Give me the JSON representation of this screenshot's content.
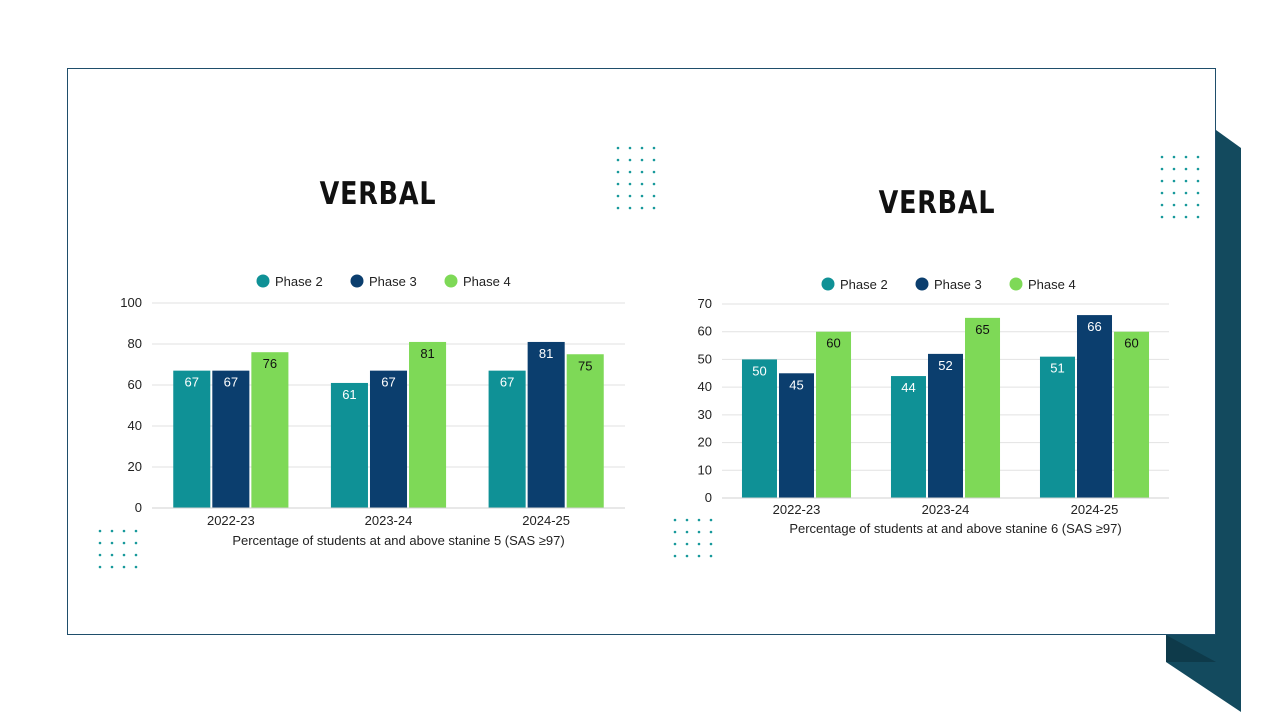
{
  "colors": {
    "phase2": "#0f9196",
    "phase3": "#0b3e6e",
    "phase4": "#7ed957",
    "frame": "#1f4e6b",
    "accent_dark": "#134a5e",
    "dots": "#17999b"
  },
  "chart_data": [
    {
      "type": "bar",
      "title": "VERBAL",
      "categories": [
        "2022-23",
        "2023-24",
        "2024-25"
      ],
      "series": [
        {
          "name": "Phase 2",
          "values": [
            67,
            61,
            67
          ]
        },
        {
          "name": "Phase 3",
          "values": [
            67,
            67,
            81
          ]
        },
        {
          "name": "Phase 4",
          "values": [
            76,
            81,
            75
          ]
        }
      ],
      "xlabel": "Percentage of students at and above stanine 5 (SAS ≥97)",
      "ylabel": "",
      "ylim": [
        0,
        100
      ],
      "yticks": [
        "0",
        "20",
        "40",
        "60",
        "80",
        "100"
      ],
      "grid": true,
      "legend": "top"
    },
    {
      "type": "bar",
      "title": "VERBAL",
      "categories": [
        "2022-23",
        "2023-24",
        "2024-25"
      ],
      "series": [
        {
          "name": "Phase 2",
          "values": [
            50,
            44,
            51
          ]
        },
        {
          "name": "Phase 3",
          "values": [
            45,
            52,
            66
          ]
        },
        {
          "name": "Phase 4",
          "values": [
            60,
            65,
            60
          ]
        }
      ],
      "xlabel": "Percentage of students at and above stanine 6 (SAS ≥97)",
      "ylabel": "",
      "ylim": [
        0,
        70
      ],
      "yticks": [
        "0",
        "10",
        "20",
        "30",
        "40",
        "50",
        "60",
        "70"
      ],
      "grid": true,
      "legend": "top"
    }
  ]
}
